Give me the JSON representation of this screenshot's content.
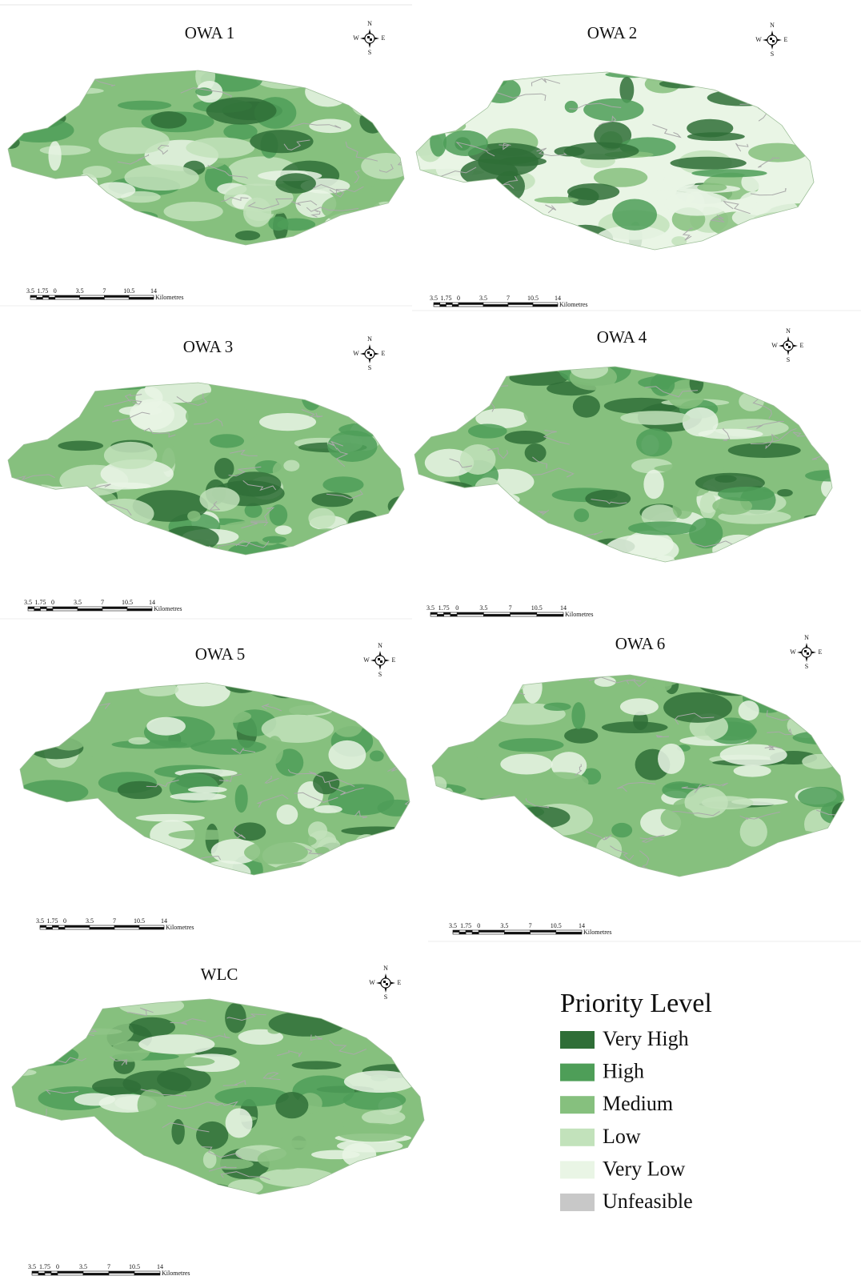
{
  "panels": [
    {
      "title": "OWA 1",
      "compass": {
        "n": "N",
        "s": "S",
        "e": "E",
        "w": "W"
      },
      "scale": {
        "ticks": [
          "3.5",
          "1.75",
          "0",
          "3.5",
          "7",
          "10.5",
          "14"
        ],
        "unit": "Kilometres"
      }
    },
    {
      "title": "OWA 2",
      "compass": {
        "n": "N",
        "s": "S",
        "e": "E",
        "w": "W"
      },
      "scale": {
        "ticks": [
          "3.5",
          "1.75",
          "0",
          "3.5",
          "7",
          "10.5",
          "14"
        ],
        "unit": "Kilometres"
      }
    },
    {
      "title": "OWA 3",
      "compass": {
        "n": "N",
        "s": "S",
        "e": "E",
        "w": "W"
      },
      "scale": {
        "ticks": [
          "3.5",
          "1.75",
          "0",
          "3.5",
          "7",
          "10.5",
          "14"
        ],
        "unit": "Kilometres"
      }
    },
    {
      "title": "OWA 4",
      "compass": {
        "n": "N",
        "s": "S",
        "e": "E",
        "w": "W"
      },
      "scale": {
        "ticks": [
          "3.5",
          "1.75",
          "0",
          "3.5",
          "7",
          "10.5",
          "14"
        ],
        "unit": "Kilometres"
      }
    },
    {
      "title": "OWA 5",
      "compass": {
        "n": "N",
        "s": "S",
        "e": "E",
        "w": "W"
      },
      "scale": {
        "ticks": [
          "3.5",
          "1.75",
          "0",
          "3.5",
          "7",
          "10.5",
          "14"
        ],
        "unit": "Kilometres"
      }
    },
    {
      "title": "OWA 6",
      "compass": {
        "n": "N",
        "s": "S",
        "e": "E",
        "w": "W"
      },
      "scale": {
        "ticks": [
          "3.5",
          "1.75",
          "0",
          "3.5",
          "7",
          "10.5",
          "14"
        ],
        "unit": "Kilometres"
      }
    },
    {
      "title": "WLC",
      "compass": {
        "n": "N",
        "s": "S",
        "e": "E",
        "w": "W"
      },
      "scale": {
        "ticks": [
          "3.5",
          "1.75",
          "0",
          "3.5",
          "7",
          "10.5",
          "14"
        ],
        "unit": "Kilometres"
      }
    }
  ],
  "legend": {
    "title": "Priority Level",
    "items": [
      {
        "label": "Very High",
        "color": "#2f6e37"
      },
      {
        "label": "High",
        "color": "#4e9e58"
      },
      {
        "label": "Medium",
        "color": "#86c07e"
      },
      {
        "label": "Low",
        "color": "#c2e2bb"
      },
      {
        "label": "Very Low",
        "color": "#e9f5e5"
      },
      {
        "label": "Unfeasible",
        "color": "#c8c8c8"
      }
    ]
  }
}
